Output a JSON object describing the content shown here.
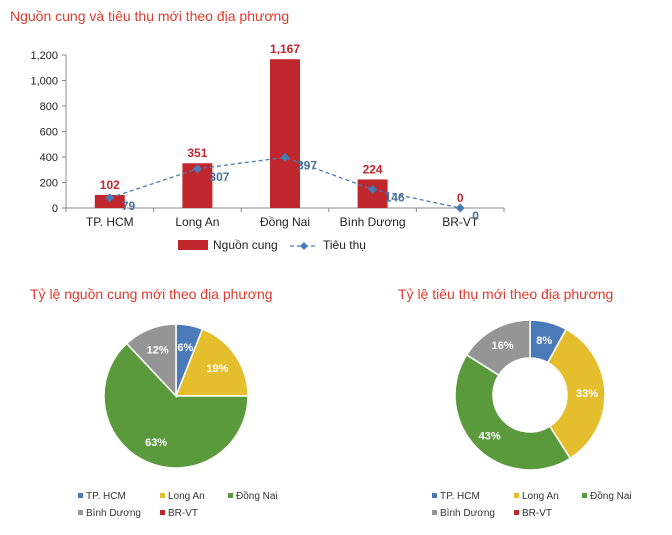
{
  "chart_data": [
    {
      "type": "bar",
      "title": "Nguồn cung và tiêu thụ mới theo địa phương",
      "categories": [
        "TP. HCM",
        "Long An",
        "Đồng Nai",
        "Bình Dương",
        "BR-VT"
      ],
      "series": [
        {
          "name": "Nguồn cung",
          "kind": "bar",
          "color": "#c0272d",
          "values": [
            102,
            351,
            1167,
            224,
            0
          ],
          "labels": [
            "102",
            "351",
            "1,167",
            "224",
            "0"
          ]
        },
        {
          "name": "Tiêu thụ",
          "kind": "line",
          "color": "#4a7ab8",
          "values": [
            79,
            307,
            397,
            146,
            0
          ],
          "labels": [
            "79",
            "307",
            "397",
            "146",
            "0"
          ]
        }
      ],
      "ylim": [
        0,
        1200
      ],
      "yticks": [
        "0",
        "200",
        "400",
        "600",
        "800",
        "1,000",
        "1,200"
      ],
      "legend_position": "bottom"
    },
    {
      "type": "pie",
      "title": "Tỷ lệ nguồn cung mới theo địa phương",
      "labels": [
        "TP. HCM",
        "Long An",
        "Đồng Nai",
        "Bình Dương",
        "BR-VT"
      ],
      "values": [
        6,
        19,
        63,
        12,
        0
      ],
      "value_labels": [
        "6%",
        "19%",
        "63%",
        "12%",
        ""
      ],
      "colors": [
        "#4a7ab8",
        "#e5be2e",
        "#5b9a3c",
        "#959595",
        "#c0272d"
      ],
      "legend_position": "bottom"
    },
    {
      "type": "donut",
      "title": "Tỷ lệ tiêu thụ mới theo địa phương",
      "labels": [
        "TP. HCM",
        "Long An",
        "Đồng Nai",
        "Bình Dương",
        "BR-VT"
      ],
      "values": [
        8,
        33,
        43,
        16,
        0
      ],
      "value_labels": [
        "8%",
        "33%",
        "43%",
        "16%",
        ""
      ],
      "colors": [
        "#4a7ab8",
        "#e5be2e",
        "#5b9a3c",
        "#959595",
        "#c0272d"
      ],
      "legend_position": "bottom"
    }
  ]
}
